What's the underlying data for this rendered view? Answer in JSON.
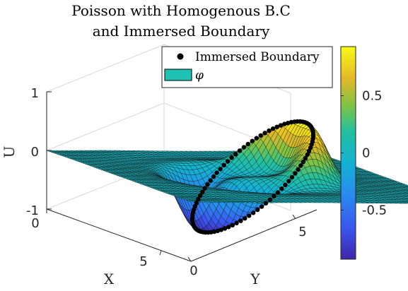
{
  "chart_data": {
    "type": "surface",
    "title": [
      "Poisson with Homogenous B.C",
      "and Immersed Boundary"
    ],
    "xlabel": "X",
    "ylabel": "Y",
    "zlabel": "U",
    "x_ticks": [
      "0",
      "5"
    ],
    "y_ticks": [
      "0",
      "5"
    ],
    "z_ticks": [
      "-1",
      "0",
      "1"
    ],
    "xlim": [
      0,
      6.283
    ],
    "ylim": [
      0,
      6.283
    ],
    "zlim": [
      -1,
      1
    ],
    "grid": true,
    "legend": {
      "placement": "top-right",
      "entries": [
        "Immersed Boundary",
        "φ"
      ],
      "marker_color": "#000000",
      "patch_color": "#1ec2b4"
    },
    "colorbar": {
      "colormap": "parula",
      "range": [
        -0.93,
        0.93
      ],
      "ticks": [
        0.5,
        0,
        -0.5
      ],
      "tick_labels": [
        "0.5",
        "0",
        "-0.5"
      ]
    },
    "surface_features": {
      "peak_value": 0.93,
      "trough_value": -0.93,
      "boundary_curve": "circle through center of domain, marked with black dots"
    }
  }
}
